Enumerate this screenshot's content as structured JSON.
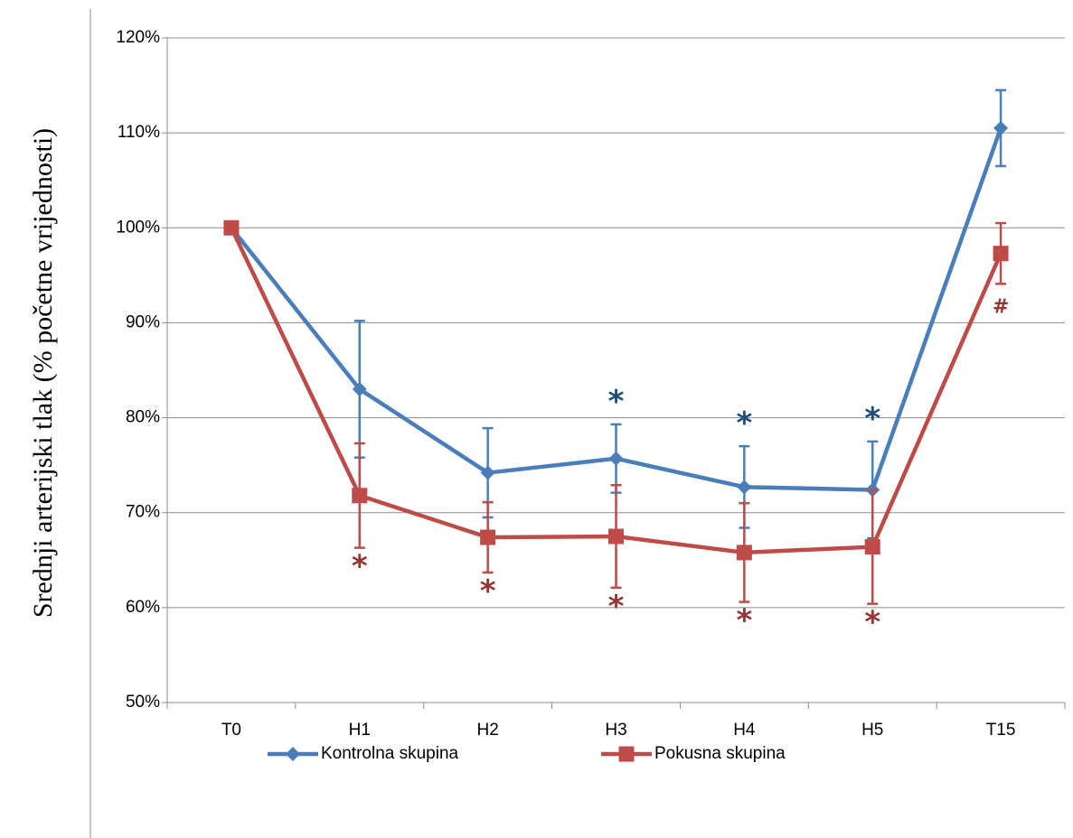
{
  "chart_data": {
    "type": "line",
    "title": "",
    "xlabel": "",
    "ylabel": "Srednji arterijski tlak (% početne vrijednosti)",
    "categories": [
      "T0",
      "H1",
      "H2",
      "H3",
      "H4",
      "H5",
      "T15"
    ],
    "ylim": [
      50,
      120
    ],
    "yticks": [
      50,
      60,
      70,
      80,
      90,
      100,
      110,
      120
    ],
    "ytick_labels": [
      "50%",
      "60%",
      "70%",
      "80%",
      "90%",
      "100%",
      "110%",
      "120%"
    ],
    "grid": true,
    "legend_position": "bottom",
    "series": [
      {
        "name": "Kontrolna skupina",
        "color": "#4a7ebb",
        "marker": "diamond",
        "values": [
          100,
          83.0,
          74.2,
          75.7,
          72.7,
          72.4,
          110.5
        ],
        "error": [
          0,
          7.2,
          4.7,
          3.6,
          4.3,
          5.1,
          4.0
        ],
        "annotations": [
          "",
          "",
          "",
          "*",
          "*",
          "*",
          ""
        ]
      },
      {
        "name": "Pokusna skupina",
        "color": "#be4b48",
        "marker": "square",
        "values": [
          100,
          71.8,
          67.4,
          67.5,
          65.8,
          66.4,
          97.3
        ],
        "error": [
          0,
          5.5,
          3.7,
          5.4,
          5.2,
          6.0,
          3.2
        ],
        "annotations": [
          "",
          "*",
          "*",
          "*",
          "*",
          "*",
          "#"
        ]
      }
    ]
  }
}
